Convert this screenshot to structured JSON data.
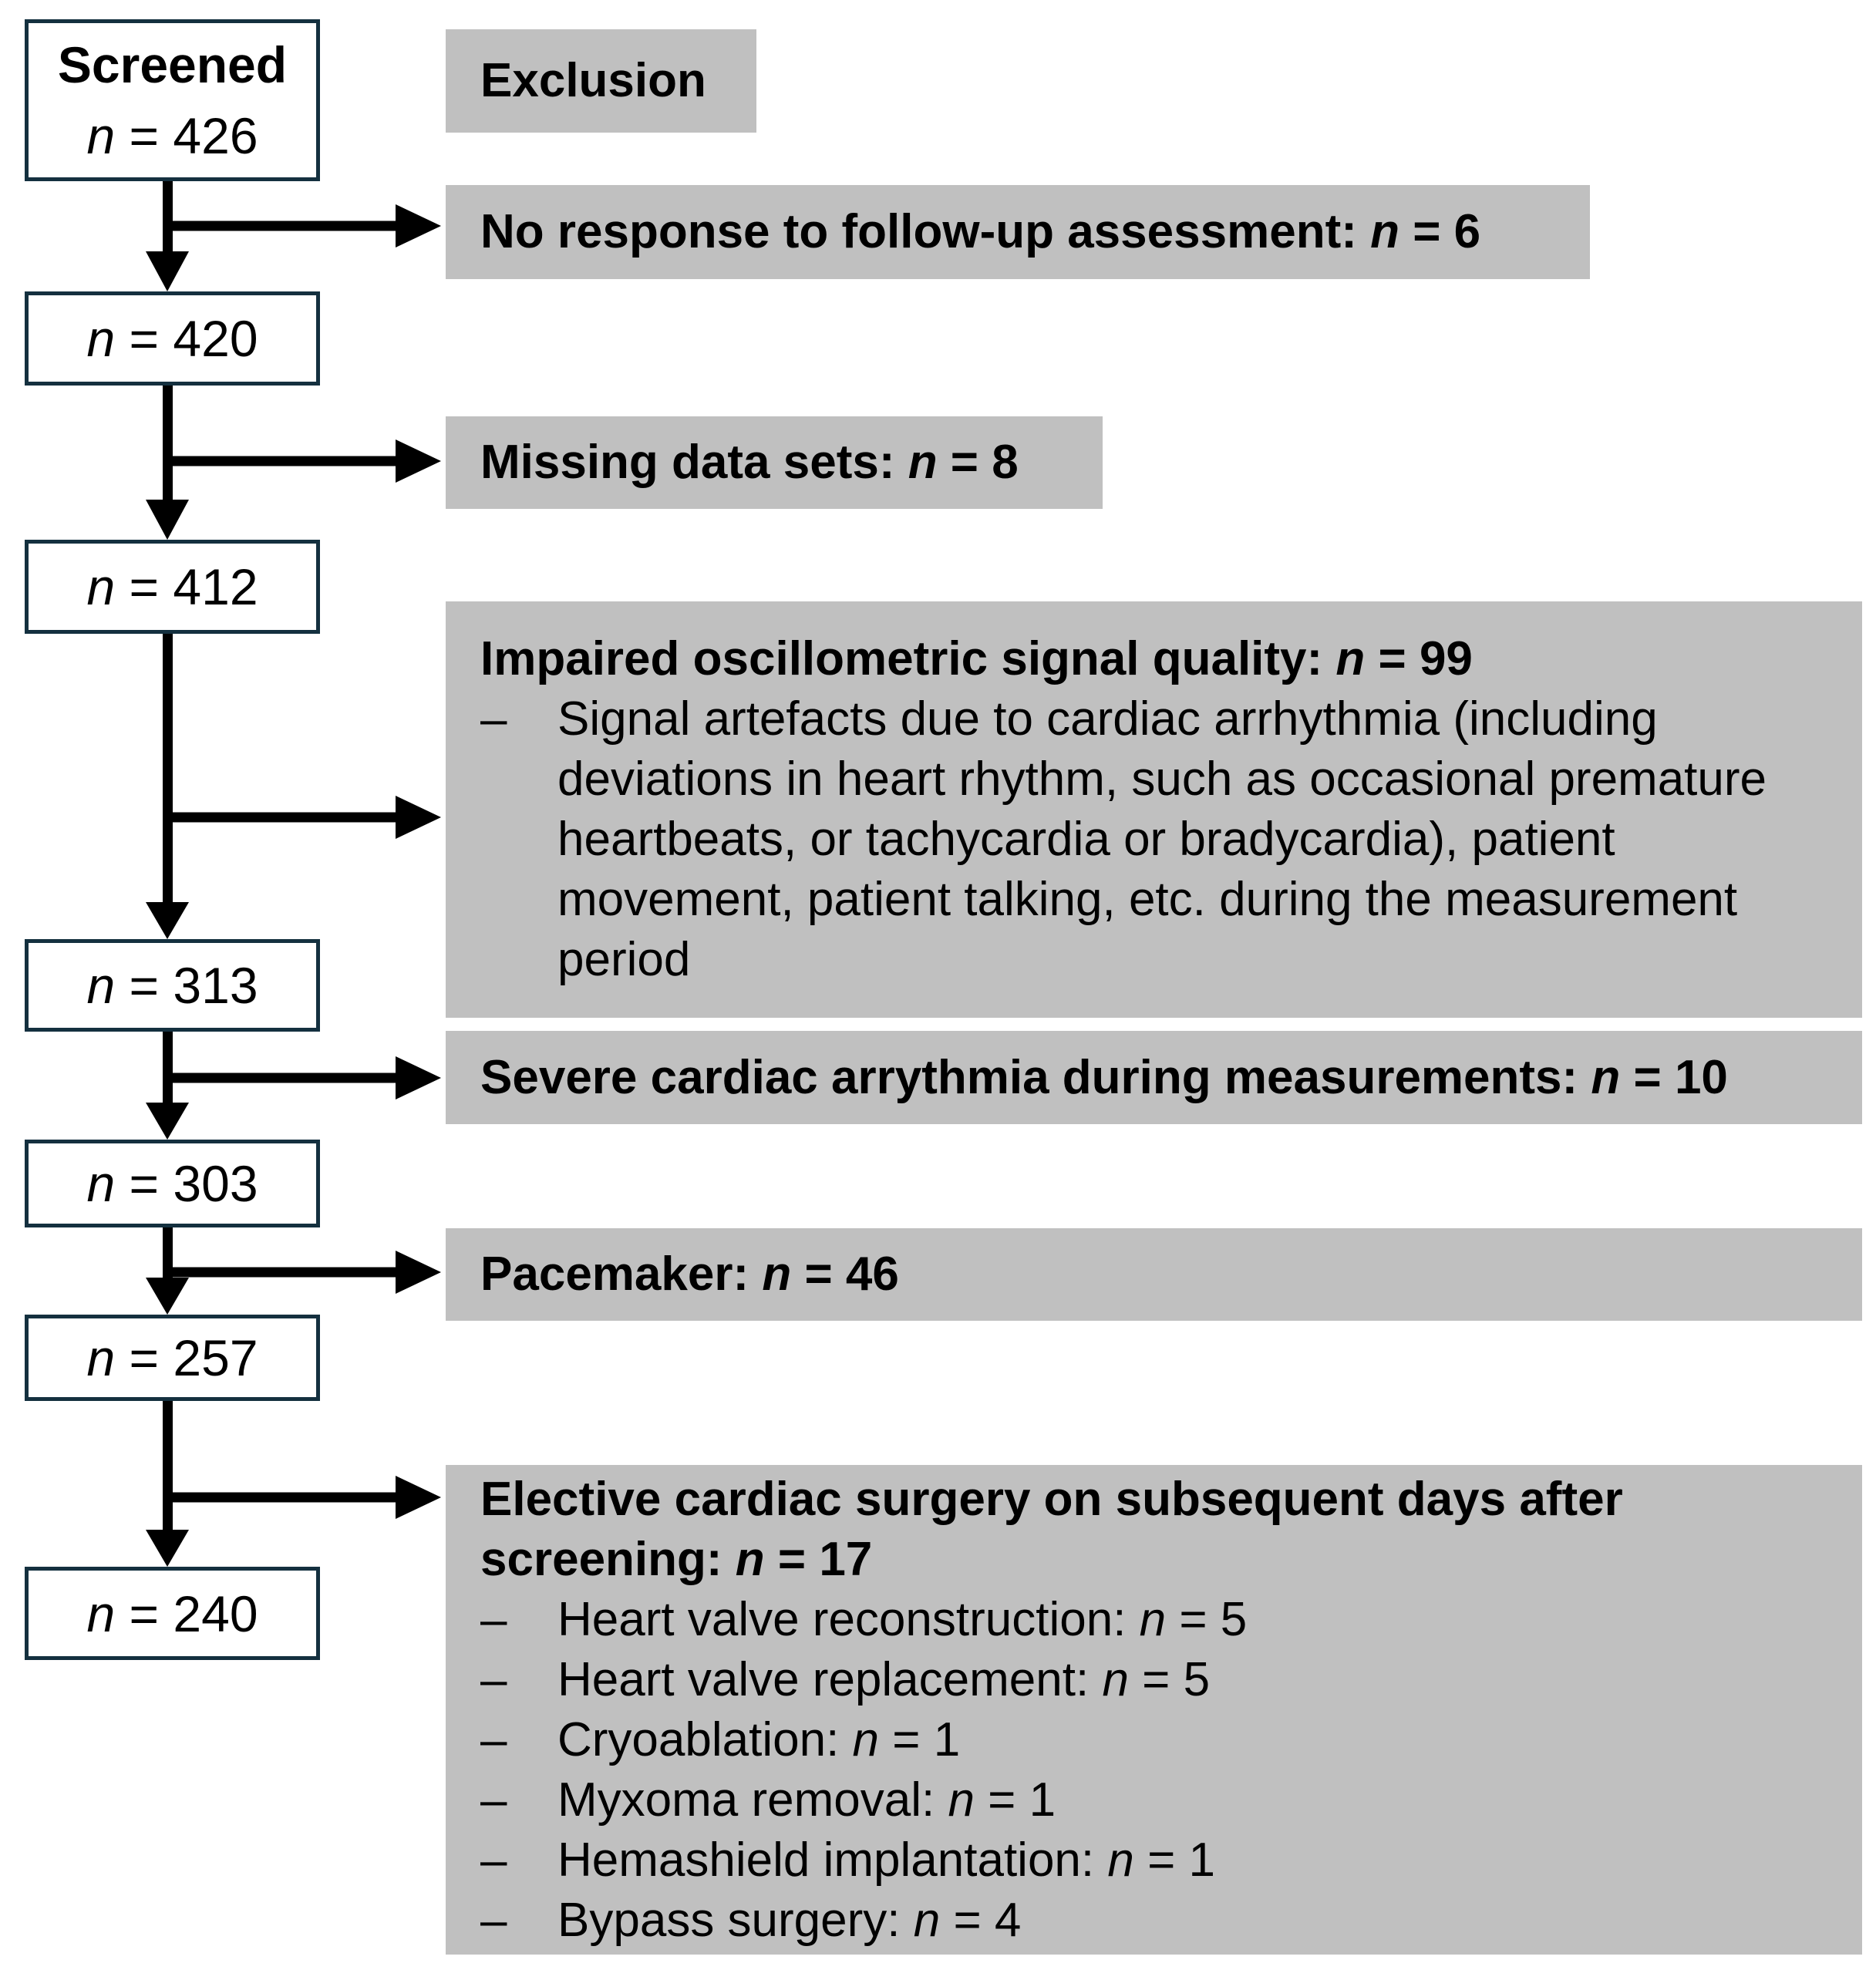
{
  "diagram": {
    "left_column": [
      {
        "title": "Screened",
        "count": "n = 426"
      },
      {
        "count": "n = 420"
      },
      {
        "count": "n = 412"
      },
      {
        "count": "n = 313"
      },
      {
        "count": "n = 303"
      },
      {
        "count": "n = 257"
      },
      {
        "count": "n = 240"
      }
    ],
    "exclusion_header": "Exclusion",
    "exclusions": [
      {
        "label": "No response to follow-up assessment: n = 6"
      },
      {
        "label": "Missing data sets: n = 8"
      },
      {
        "label": "Impaired oscillometric signal quality: n = 99",
        "bullet_marker": "–",
        "bullets": [
          "Signal artefacts due to cardiac arrhythmia (including deviations in heart rhythm, such as occasional premature heartbeats, or tachycardia or bradycardia), patient movement, patient talking, etc. during the measurement period"
        ]
      },
      {
        "label": "Severe cardiac arrythmia during measurements: n = 10"
      },
      {
        "label": "Pacemaker: n = 46"
      },
      {
        "label": "Elective cardiac surgery on subsequent days after screening: n = 17",
        "bullet_marker": "–",
        "bullets": [
          "Heart valve reconstruction: n = 5",
          "Heart valve replacement: n = 5",
          "Cryoablation: n = 1",
          "Myxoma removal: n = 1",
          "Hemashield implantation: n = 1",
          "Bypass surgery: n = 4"
        ]
      }
    ]
  },
  "colors": {
    "box_border": "#14303f",
    "exclusion_fill": "#c0c0c0",
    "arrow": "#000000",
    "text": "#000000",
    "page_background": "#ffffff"
  }
}
